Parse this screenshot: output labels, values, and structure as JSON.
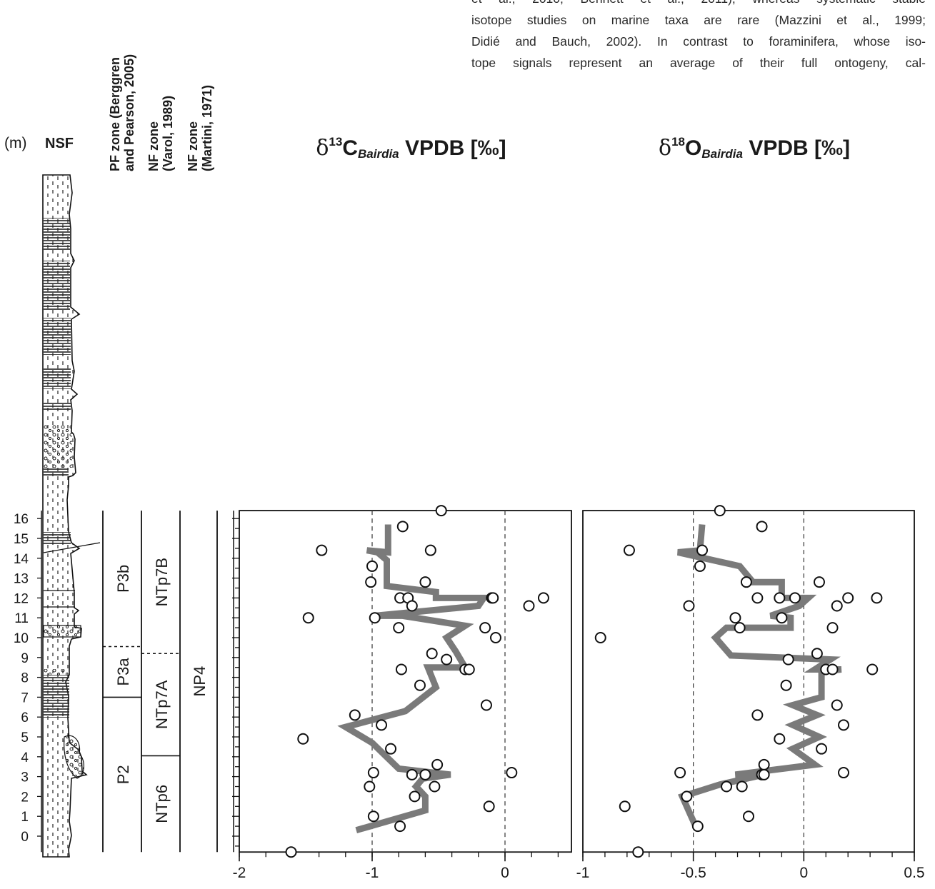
{
  "paragraph": {
    "lines": [
      "et al., 2010; Bennett et al., 2011), whereas systematic stable",
      "isotope studies on marine taxa are rare (Mazzini et al., 1999;",
      "Didié and Bauch, 2002). In contrast to foraminifera, whose iso-",
      "tope signals represent an average of their full ontogeny, cal-"
    ]
  },
  "column_headers": {
    "unit": "(m)",
    "nsf": "NSF",
    "pf_line1": "PF zone (Berggren",
    "pf_line2": "and Pearson, 2005)",
    "nfv_line1": "NF zone",
    "nfv_line2": "(Varol, 1989)",
    "nfm_line1": "NF zone",
    "nfm_line2": "(Martini, 1971)"
  },
  "zones": {
    "pf": [
      {
        "label": "P2",
        "from": -0.8,
        "to": 7.0
      },
      {
        "label": "P3a",
        "from": 7.0,
        "to": 9.55
      },
      {
        "label": "P3b",
        "from": 9.55,
        "to": 16.4
      }
    ],
    "nf_varol": [
      {
        "label": "NTp6",
        "from": -0.8,
        "to": 4.05
      },
      {
        "label": "NTp7A",
        "from": 4.05,
        "to": 9.2
      },
      {
        "label": "NTp7B",
        "from": 9.2,
        "to": 16.4
      }
    ],
    "nf_martini": [
      {
        "label": "NP4",
        "from": -0.8,
        "to": 16.4
      }
    ]
  },
  "colors": {
    "trend": "#7a7a7a",
    "axis": "#111111",
    "text": "#1a1a1a",
    "marker_fill": "#ffffff"
  },
  "chart_data": [
    {
      "type": "scatter",
      "title": {
        "delta": "δ",
        "sup": "13",
        "el": "C",
        "sub": "Bairdia",
        "rest": " VPDB [‰]"
      },
      "ylabel": "(m)",
      "xlim": [
        -2,
        0.5
      ],
      "ylim": [
        -0.8,
        16.4
      ],
      "xticks": [
        "-2",
        "-1",
        "0"
      ],
      "xtick_values": [
        -2,
        -1,
        0
      ],
      "yticks": [
        0,
        1,
        2,
        3,
        4,
        5,
        6,
        7,
        8,
        9,
        10,
        11,
        12,
        13,
        14,
        15,
        16
      ],
      "dashed_refs": [
        -1,
        0
      ],
      "points": [
        {
          "x": -0.48,
          "y": 16.4
        },
        {
          "x": -0.77,
          "y": 15.6
        },
        {
          "x": -1.38,
          "y": 14.4
        },
        {
          "x": -0.56,
          "y": 14.4
        },
        {
          "x": -1.0,
          "y": 13.6
        },
        {
          "x": -1.01,
          "y": 12.8
        },
        {
          "x": -0.6,
          "y": 12.8
        },
        {
          "x": -0.1,
          "y": 12.0
        },
        {
          "x": -0.09,
          "y": 12.0
        },
        {
          "x": 0.29,
          "y": 12.0
        },
        {
          "x": -0.79,
          "y": 12.0
        },
        {
          "x": -0.73,
          "y": 12.0
        },
        {
          "x": -0.7,
          "y": 11.6
        },
        {
          "x": 0.18,
          "y": 11.6
        },
        {
          "x": -1.48,
          "y": 11.0
        },
        {
          "x": -0.98,
          "y": 11.0
        },
        {
          "x": -0.8,
          "y": 10.5
        },
        {
          "x": -0.15,
          "y": 10.5
        },
        {
          "x": -0.07,
          "y": 10.0
        },
        {
          "x": -0.55,
          "y": 9.2
        },
        {
          "x": -0.44,
          "y": 8.9
        },
        {
          "x": -0.78,
          "y": 8.4
        },
        {
          "x": -0.3,
          "y": 8.4
        },
        {
          "x": -0.27,
          "y": 8.4
        },
        {
          "x": -0.64,
          "y": 7.6
        },
        {
          "x": -0.14,
          "y": 6.6
        },
        {
          "x": -1.13,
          "y": 6.1
        },
        {
          "x": -0.93,
          "y": 5.6
        },
        {
          "x": -1.52,
          "y": 4.9
        },
        {
          "x": -0.86,
          "y": 4.4
        },
        {
          "x": -0.51,
          "y": 3.6
        },
        {
          "x": -0.99,
          "y": 3.2
        },
        {
          "x": -0.7,
          "y": 3.1
        },
        {
          "x": -0.6,
          "y": 3.1
        },
        {
          "x": 0.05,
          "y": 3.2
        },
        {
          "x": -1.02,
          "y": 2.5
        },
        {
          "x": -0.53,
          "y": 2.5
        },
        {
          "x": -0.68,
          "y": 2.0
        },
        {
          "x": -0.12,
          "y": 1.5
        },
        {
          "x": -0.99,
          "y": 1.0
        },
        {
          "x": -0.79,
          "y": 0.5
        },
        {
          "x": -1.61,
          "y": -0.8
        }
      ],
      "trend": [
        {
          "x": -1.12,
          "y": 0.3
        },
        {
          "x": -0.6,
          "y": 1.3
        },
        {
          "x": -0.6,
          "y": 2.0
        },
        {
          "x": -0.67,
          "y": 2.5
        },
        {
          "x": -0.62,
          "y": 2.9
        },
        {
          "x": -0.41,
          "y": 3.1
        },
        {
          "x": -0.8,
          "y": 3.4
        },
        {
          "x": -1.0,
          "y": 4.7
        },
        {
          "x": -1.2,
          "y": 5.5
        },
        {
          "x": -0.75,
          "y": 6.3
        },
        {
          "x": -0.52,
          "y": 7.5
        },
        {
          "x": -0.58,
          "y": 8.5
        },
        {
          "x": -0.3,
          "y": 8.5
        },
        {
          "x": -0.37,
          "y": 9.3
        },
        {
          "x": -0.44,
          "y": 10.0
        },
        {
          "x": -0.3,
          "y": 10.6
        },
        {
          "x": -0.77,
          "y": 11.1
        },
        {
          "x": -0.98,
          "y": 11.1
        },
        {
          "x": -0.2,
          "y": 11.6
        },
        {
          "x": -0.16,
          "y": 12.0
        },
        {
          "x": -0.52,
          "y": 12.0
        },
        {
          "x": -0.52,
          "y": 12.3
        },
        {
          "x": -0.89,
          "y": 12.6
        },
        {
          "x": -0.89,
          "y": 13.9
        },
        {
          "x": -0.96,
          "y": 14.3
        },
        {
          "x": -1.04,
          "y": 14.4
        },
        {
          "x": -0.88,
          "y": 14.3
        },
        {
          "x": -0.88,
          "y": 15.7
        }
      ]
    },
    {
      "type": "scatter",
      "title": {
        "delta": "δ",
        "sup": "18",
        "el": "O",
        "sub": "Bairdia",
        "rest": " VPDB [‰]"
      },
      "xlim": [
        -1,
        0.5
      ],
      "ylim": [
        -0.8,
        16.4
      ],
      "xticks": [
        "-1",
        "-0.5",
        "0",
        "0.5"
      ],
      "xtick_values": [
        -1,
        -0.5,
        0,
        0.5
      ],
      "dashed_refs": [
        -0.5,
        0
      ],
      "points": [
        {
          "x": -0.38,
          "y": 16.4
        },
        {
          "x": -0.19,
          "y": 15.6
        },
        {
          "x": -0.79,
          "y": 14.4
        },
        {
          "x": -0.46,
          "y": 14.4
        },
        {
          "x": -0.47,
          "y": 13.6
        },
        {
          "x": -0.26,
          "y": 12.8
        },
        {
          "x": 0.07,
          "y": 12.8
        },
        {
          "x": -0.21,
          "y": 12.0
        },
        {
          "x": -0.11,
          "y": 12.0
        },
        {
          "x": -0.04,
          "y": 12.0
        },
        {
          "x": 0.2,
          "y": 12.0
        },
        {
          "x": 0.33,
          "y": 12.0
        },
        {
          "x": -0.52,
          "y": 11.6
        },
        {
          "x": 0.15,
          "y": 11.6
        },
        {
          "x": -0.31,
          "y": 11.0
        },
        {
          "x": -0.1,
          "y": 11.0
        },
        {
          "x": -0.29,
          "y": 10.5
        },
        {
          "x": 0.13,
          "y": 10.5
        },
        {
          "x": -0.92,
          "y": 10.0
        },
        {
          "x": 0.06,
          "y": 9.2
        },
        {
          "x": -0.07,
          "y": 8.9
        },
        {
          "x": 0.1,
          "y": 8.4
        },
        {
          "x": 0.13,
          "y": 8.4
        },
        {
          "x": 0.31,
          "y": 8.4
        },
        {
          "x": -0.08,
          "y": 7.6
        },
        {
          "x": 0.15,
          "y": 6.6
        },
        {
          "x": -0.21,
          "y": 6.1
        },
        {
          "x": 0.18,
          "y": 5.6
        },
        {
          "x": -0.11,
          "y": 4.9
        },
        {
          "x": 0.08,
          "y": 4.4
        },
        {
          "x": -0.18,
          "y": 3.6
        },
        {
          "x": -0.56,
          "y": 3.2
        },
        {
          "x": 0.18,
          "y": 3.2
        },
        {
          "x": -0.19,
          "y": 3.1
        },
        {
          "x": -0.18,
          "y": 3.1
        },
        {
          "x": -0.35,
          "y": 2.5
        },
        {
          "x": -0.28,
          "y": 2.5
        },
        {
          "x": -0.53,
          "y": 2.0
        },
        {
          "x": -0.81,
          "y": 1.5
        },
        {
          "x": -0.25,
          "y": 1.0
        },
        {
          "x": -0.48,
          "y": 0.5
        },
        {
          "x": -0.75,
          "y": -0.8
        }
      ],
      "trend": [
        {
          "x": -0.49,
          "y": 0.5
        },
        {
          "x": -0.55,
          "y": 2.0
        },
        {
          "x": -0.38,
          "y": 2.6
        },
        {
          "x": -0.18,
          "y": 3.1
        },
        {
          "x": -0.31,
          "y": 3.1
        },
        {
          "x": 0.05,
          "y": 3.6
        },
        {
          "x": -0.05,
          "y": 4.4
        },
        {
          "x": 0.07,
          "y": 5.0
        },
        {
          "x": -0.05,
          "y": 5.6
        },
        {
          "x": 0.06,
          "y": 6.1
        },
        {
          "x": -0.05,
          "y": 6.6
        },
        {
          "x": 0.08,
          "y": 7.0
        },
        {
          "x": 0.08,
          "y": 8.3
        },
        {
          "x": 0.17,
          "y": 8.4
        },
        {
          "x": 0.05,
          "y": 8.4
        },
        {
          "x": 0.12,
          "y": 8.9
        },
        {
          "x": -0.33,
          "y": 9.1
        },
        {
          "x": -0.4,
          "y": 10.0
        },
        {
          "x": -0.35,
          "y": 10.5
        },
        {
          "x": -0.06,
          "y": 10.5
        },
        {
          "x": -0.06,
          "y": 11.0
        },
        {
          "x": -0.15,
          "y": 11.1
        },
        {
          "x": -0.02,
          "y": 11.6
        },
        {
          "x": 0.02,
          "y": 12.0
        },
        {
          "x": -0.1,
          "y": 12.0
        },
        {
          "x": -0.1,
          "y": 12.8
        },
        {
          "x": -0.23,
          "y": 12.8
        },
        {
          "x": -0.29,
          "y": 13.6
        },
        {
          "x": -0.57,
          "y": 14.3
        },
        {
          "x": -0.47,
          "y": 14.4
        },
        {
          "x": -0.46,
          "y": 15.7
        }
      ]
    }
  ]
}
